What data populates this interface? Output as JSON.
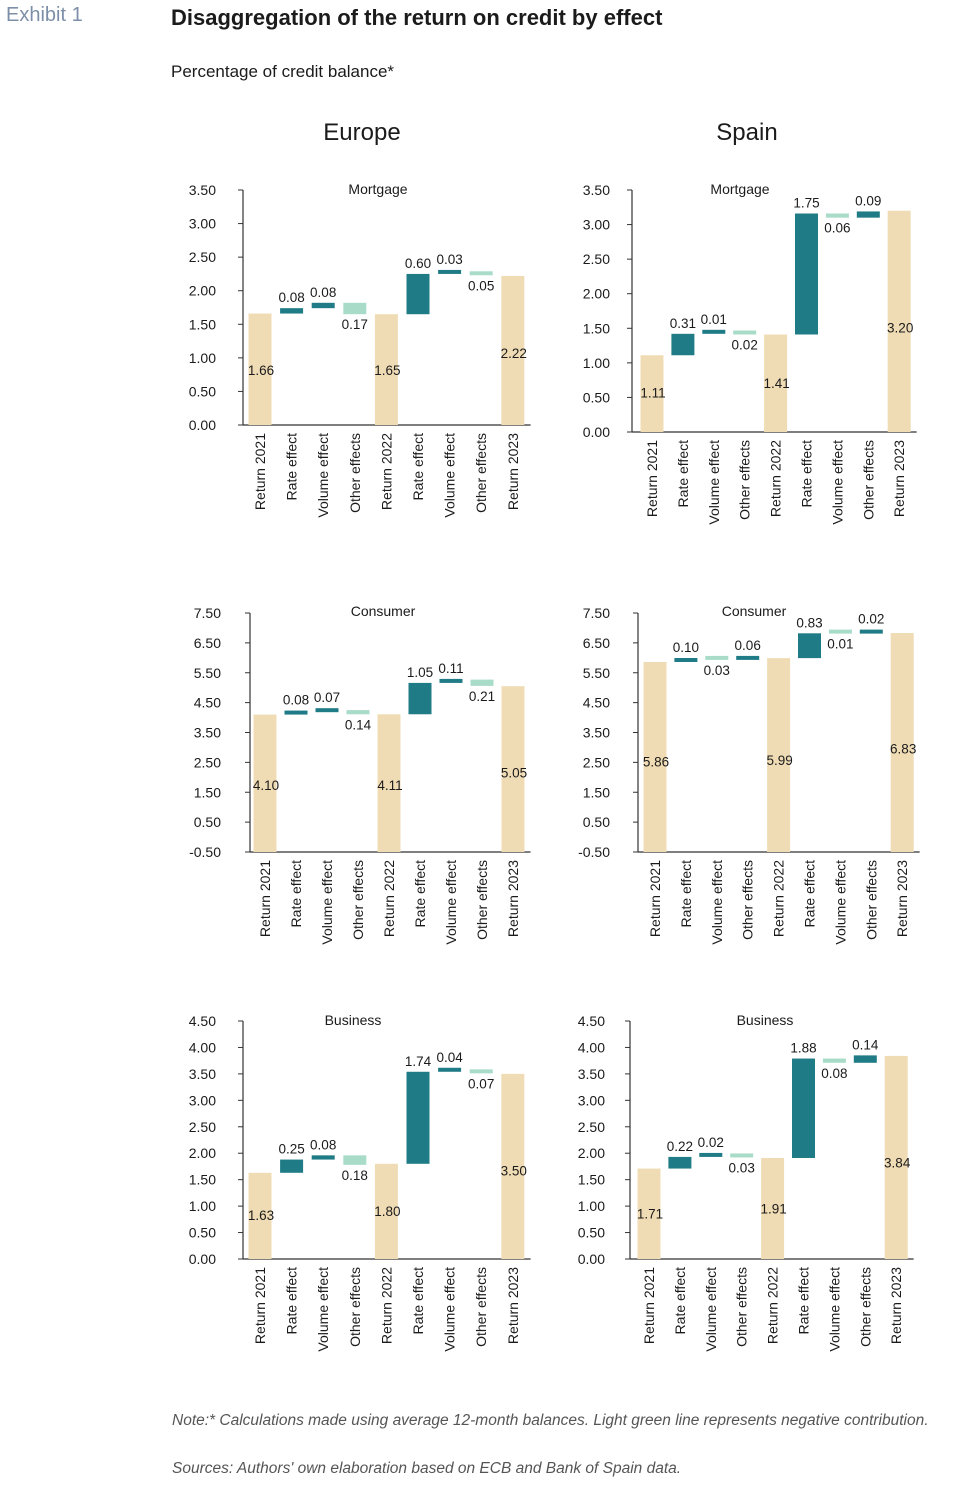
{
  "header": {
    "exhibit": "Exhibit 1",
    "title": "Disaggregation of the return on credit by effect",
    "subtitle": "Percentage of credit balance*",
    "col_left": "Europe",
    "col_right": "Spain"
  },
  "footer": {
    "note": "Note:* Calculations made using average 12-month balances. Light green line represents negative contribution.",
    "sources": "Sources: Authors' own elaboration based on ECB and Bank of Spain data."
  },
  "colors": {
    "total": "#f0dcb4",
    "positive": "#1f7b85",
    "negative": "#a8dcc8",
    "axis": "#333333"
  },
  "chart_data": [
    {
      "type": "bar",
      "subtype": "waterfall",
      "title": "Mortgage",
      "region": "Europe",
      "categories": [
        "Return 2021",
        "Rate effect",
        "Volume effect",
        "Other effects",
        "Return 2022",
        "Rate effect",
        "Volume effect",
        "Other effects",
        "Return 2023"
      ],
      "values": [
        1.66,
        0.08,
        0.08,
        -0.17,
        1.65,
        0.6,
        0.03,
        -0.05,
        2.22
      ],
      "labels": [
        "1.66",
        "0.08",
        "0.08",
        "0.17",
        "1.65",
        "0.60",
        "0.03",
        "0.05",
        "2.22"
      ],
      "ylim": [
        0,
        3.5
      ],
      "yticks": [
        0,
        0.5,
        1,
        1.5,
        2,
        2.5,
        3,
        3.5
      ]
    },
    {
      "type": "bar",
      "subtype": "waterfall",
      "title": "Mortgage",
      "region": "Spain",
      "categories": [
        "Return 2021",
        "Rate effect",
        "Volume effect",
        "Other effects",
        "Return 2022",
        "Rate effect",
        "Volume effect",
        "Other effects",
        "Return 2023"
      ],
      "values": [
        1.11,
        0.31,
        0.01,
        -0.02,
        1.41,
        1.75,
        -0.06,
        0.09,
        3.2
      ],
      "labels": [
        "1.11",
        "0.31",
        "0.01",
        "0.02",
        "1.41",
        "1.75",
        "0.06",
        "0.09",
        "3.20"
      ],
      "ylim": [
        0,
        3.5
      ],
      "yticks": [
        0,
        0.5,
        1,
        1.5,
        2,
        2.5,
        3,
        3.5
      ]
    },
    {
      "type": "bar",
      "subtype": "waterfall",
      "title": "Consumer",
      "region": "Europe",
      "categories": [
        "Return 2021",
        "Rate effect",
        "Volume effect",
        "Other effects",
        "Return 2022",
        "Rate effect",
        "Volume effect",
        "Other effects",
        "Return 2023"
      ],
      "values": [
        4.1,
        0.08,
        0.07,
        -0.14,
        4.11,
        1.05,
        0.11,
        -0.21,
        5.05
      ],
      "labels": [
        "4.10",
        "0.08",
        "0.07",
        "0.14",
        "4.11",
        "1.05",
        "0.11",
        "0.21",
        "5.05"
      ],
      "ylim": [
        -0.5,
        7.5
      ],
      "yticks": [
        -0.5,
        0.5,
        1.5,
        2.5,
        3.5,
        4.5,
        5.5,
        6.5,
        7.5
      ]
    },
    {
      "type": "bar",
      "subtype": "waterfall",
      "title": "Consumer",
      "region": "Spain",
      "categories": [
        "Return 2021",
        "Rate effect",
        "Volume effect",
        "Other effects",
        "Return 2022",
        "Rate effect",
        "Volume effect",
        "Other effects",
        "Return 2023"
      ],
      "values": [
        5.86,
        0.1,
        -0.03,
        0.06,
        5.99,
        0.83,
        -0.01,
        0.02,
        6.83
      ],
      "labels": [
        "5.86",
        "0.10",
        "0.03",
        "0.06",
        "5.99",
        "0.83",
        "0.01",
        "0.02",
        "6.83"
      ],
      "ylim": [
        -0.5,
        7.5
      ],
      "yticks": [
        -0.5,
        0.5,
        1.5,
        2.5,
        3.5,
        4.5,
        5.5,
        6.5,
        7.5
      ]
    },
    {
      "type": "bar",
      "subtype": "waterfall",
      "title": "Business",
      "region": "Europe",
      "categories": [
        "Return 2021",
        "Rate effect",
        "Volume effect",
        "Other effects",
        "Return 2022",
        "Rate effect",
        "Volume effect",
        "Other effects",
        "Return 2023"
      ],
      "values": [
        1.63,
        0.25,
        0.08,
        -0.18,
        1.8,
        1.74,
        0.04,
        -0.07,
        3.5
      ],
      "labels": [
        "1.63",
        "0.25",
        "0.08",
        "0.18",
        "1.80",
        "1.74",
        "0.04",
        "0.07",
        "3.50"
      ],
      "ylim": [
        0,
        4.5
      ],
      "yticks": [
        0,
        0.5,
        1,
        1.5,
        2,
        2.5,
        3,
        3.5,
        4,
        4.5
      ]
    },
    {
      "type": "bar",
      "subtype": "waterfall",
      "title": "Business",
      "region": "Spain",
      "categories": [
        "Return 2021",
        "Rate effect",
        "Volume effect",
        "Other effects",
        "Return 2022",
        "Rate effect",
        "Volume effect",
        "Other effects",
        "Return 2023"
      ],
      "values": [
        1.71,
        0.22,
        0.02,
        -0.03,
        1.91,
        1.88,
        -0.08,
        0.14,
        3.84
      ],
      "labels": [
        "1.71",
        "0.22",
        "0.02",
        "0.03",
        "1.91",
        "1.88",
        "0.08",
        "0.14",
        "3.84"
      ],
      "ylim": [
        0,
        4.5
      ],
      "yticks": [
        0,
        0.5,
        1,
        1.5,
        2,
        2.5,
        3,
        3.5,
        4,
        4.5
      ]
    }
  ]
}
